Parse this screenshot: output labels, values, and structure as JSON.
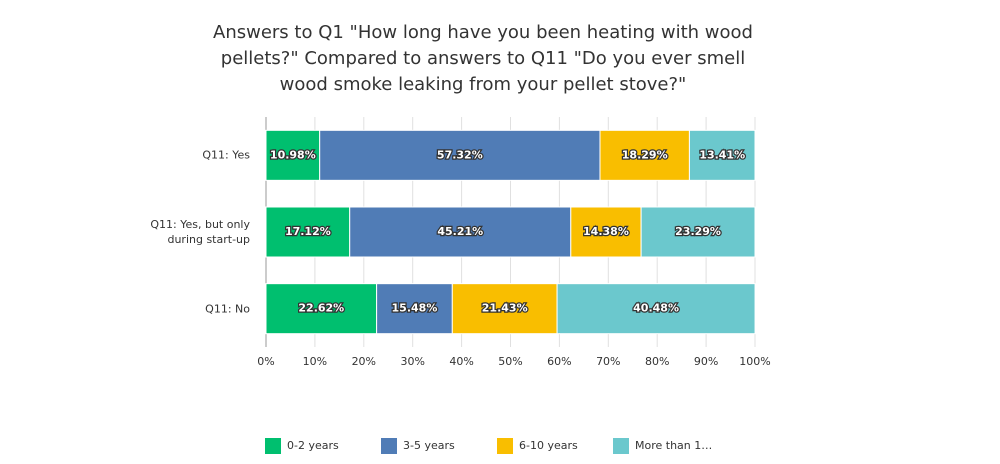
{
  "chart_data": {
    "type": "bar",
    "orientation": "horizontal",
    "stacked": true,
    "title": "Answers to Q1 \"How long have you been heating with wood pellets?\" Compared to answers to Q11 \"Do you ever smell wood smoke leaking from your pellet stove?\"",
    "categories": [
      "Q11: Yes",
      "Q11: Yes, but only during start-up",
      "Q11: No"
    ],
    "series": [
      {
        "name": "0-2 years",
        "color": "#00bf6f",
        "values": [
          10.98,
          17.12,
          22.62
        ],
        "value_labels": [
          "10.98%",
          "17.12%",
          "22.62%"
        ]
      },
      {
        "name": "3-5 years",
        "color": "#507cb6",
        "values": [
          57.32,
          45.21,
          15.48
        ],
        "value_labels": [
          "57.32%",
          "45.21%",
          "15.48%"
        ]
      },
      {
        "name": "6-10 years",
        "color": "#f9be00",
        "values": [
          18.29,
          14.38,
          21.43
        ],
        "value_labels": [
          "18.29%",
          "14.38%",
          "21.43%"
        ]
      },
      {
        "name": "More than 1…",
        "color": "#6bc8cd",
        "values": [
          13.41,
          23.29,
          40.48
        ],
        "value_labels": [
          "13.41%",
          "23.29%",
          "40.48%"
        ]
      }
    ],
    "xlim": [
      0,
      100
    ],
    "xticks": [
      {
        "value": 0,
        "label": "0%"
      },
      {
        "value": 10,
        "label": "10%"
      },
      {
        "value": 20,
        "label": "20%"
      },
      {
        "value": 30,
        "label": "30%"
      },
      {
        "value": 40,
        "label": "40%"
      },
      {
        "value": 50,
        "label": "50%"
      },
      {
        "value": 60,
        "label": "60%"
      },
      {
        "value": 70,
        "label": "70%"
      },
      {
        "value": 80,
        "label": "80%"
      },
      {
        "value": 90,
        "label": "90%"
      },
      {
        "value": 100,
        "label": "100%"
      }
    ],
    "grid": true,
    "legend": "bottom"
  }
}
